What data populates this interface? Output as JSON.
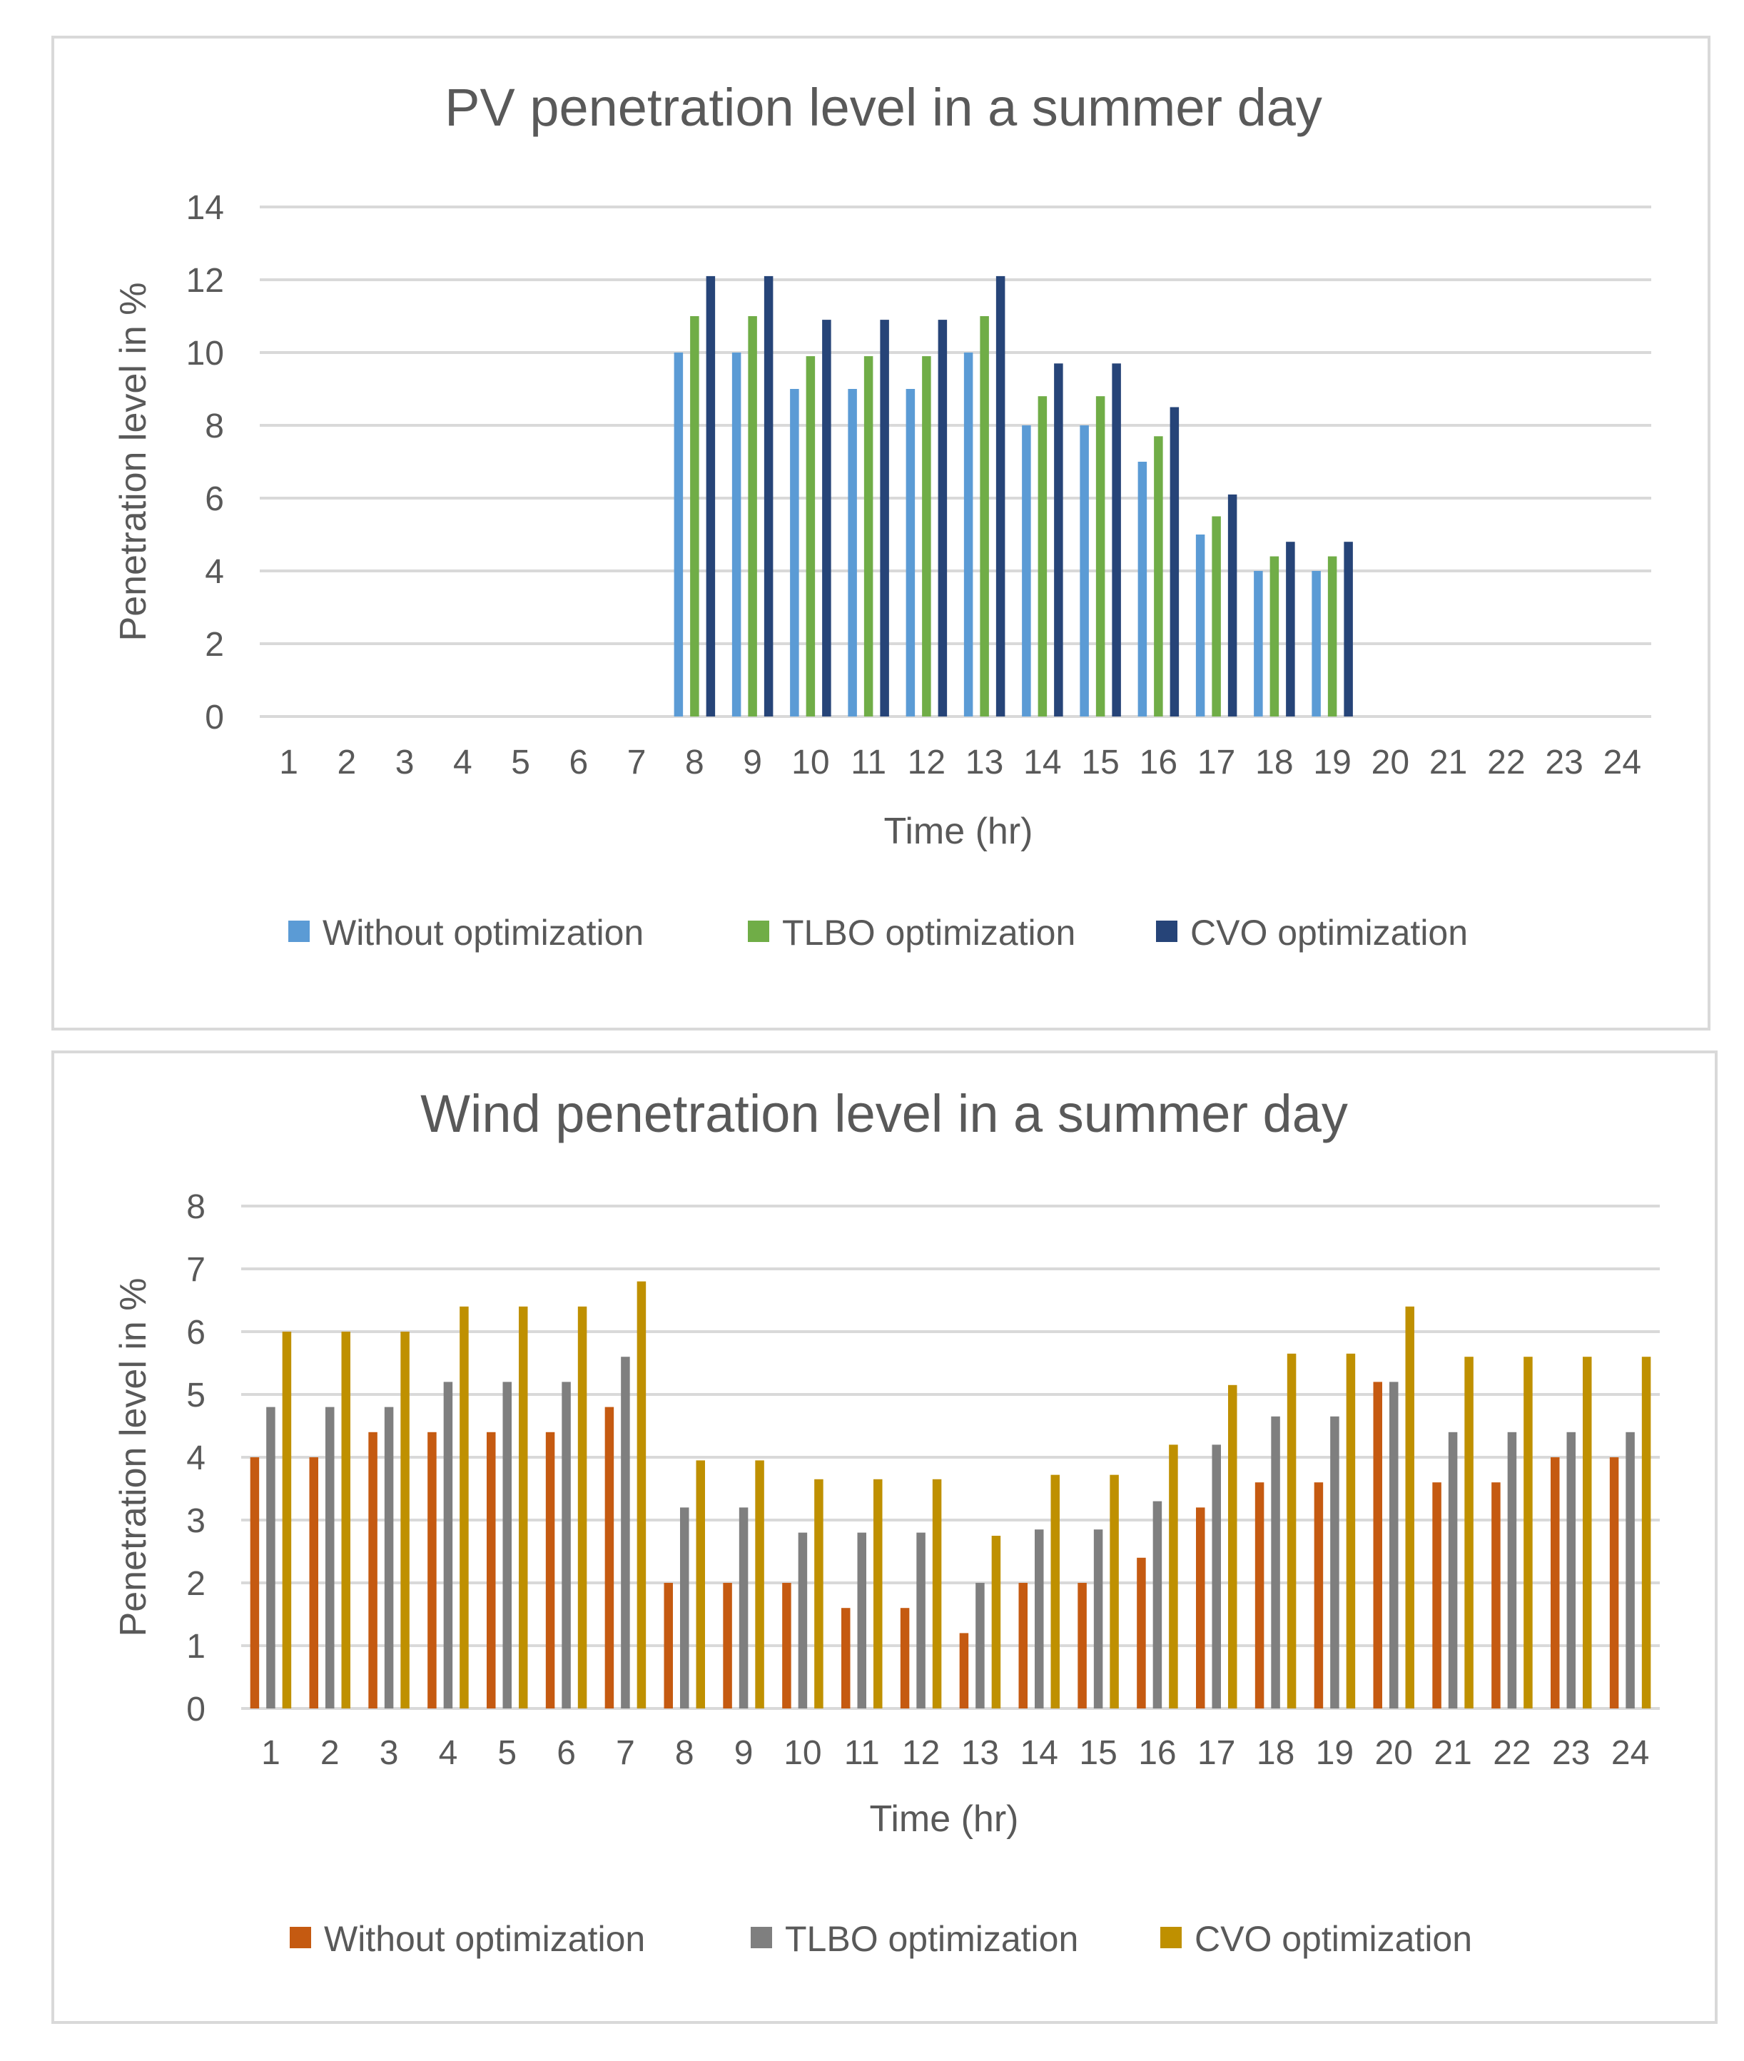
{
  "chart_data": [
    {
      "id": "pv",
      "type": "bar",
      "title": "PV penetration level in a summer day",
      "xlabel": "Time (hr)",
      "ylabel": "Penetration level in %",
      "ylim": [
        0,
        14
      ],
      "yticks": [
        "0",
        "2",
        "4",
        "6",
        "8",
        "10",
        "12",
        "14"
      ],
      "grid": true,
      "legend_position": "bottom",
      "categories": [
        "1",
        "2",
        "3",
        "4",
        "5",
        "6",
        "7",
        "8",
        "9",
        "10",
        "11",
        "12",
        "13",
        "14",
        "15",
        "16",
        "17",
        "18",
        "19",
        "20",
        "21",
        "22",
        "23",
        "24"
      ],
      "series": [
        {
          "name": "Without optimization",
          "color": "#5b9bd5",
          "values": [
            0,
            0,
            0,
            0,
            0,
            0,
            0,
            10,
            10,
            9,
            9,
            9,
            10,
            8,
            8,
            7,
            5,
            4,
            4,
            0,
            0,
            0,
            0,
            0
          ]
        },
        {
          "name": "TLBO optimization",
          "color": "#70ad47",
          "values": [
            0,
            0,
            0,
            0,
            0,
            0,
            0,
            11,
            11,
            9.9,
            9.9,
            9.9,
            11,
            8.8,
            8.8,
            7.7,
            5.5,
            4.4,
            4.4,
            0,
            0,
            0,
            0,
            0
          ]
        },
        {
          "name": "CVO optimization",
          "color": "#264478",
          "values": [
            0,
            0,
            0,
            0,
            0,
            0,
            0,
            12.1,
            12.1,
            10.9,
            10.9,
            10.9,
            12.1,
            9.7,
            9.7,
            8.5,
            6.1,
            4.8,
            4.8,
            0,
            0,
            0,
            0,
            0
          ]
        }
      ]
    },
    {
      "id": "wind",
      "type": "bar",
      "title": "Wind penetration level in a summer day",
      "xlabel": "Time (hr)",
      "ylabel": "Penetration level in %",
      "ylim": [
        0,
        8
      ],
      "yticks": [
        "0",
        "1",
        "2",
        "3",
        "4",
        "5",
        "6",
        "7",
        "8"
      ],
      "grid": true,
      "legend_position": "bottom",
      "categories": [
        "1",
        "2",
        "3",
        "4",
        "5",
        "6",
        "7",
        "8",
        "9",
        "10",
        "11",
        "12",
        "13",
        "14",
        "15",
        "16",
        "17",
        "18",
        "19",
        "20",
        "21",
        "22",
        "23",
        "24"
      ],
      "series": [
        {
          "name": "Without optimization",
          "color": "#c55a11",
          "values": [
            4,
            4,
            4.4,
            4.4,
            4.4,
            4.4,
            4.8,
            2,
            2,
            2,
            1.6,
            1.6,
            1.2,
            2,
            2,
            2.4,
            3.2,
            3.6,
            3.6,
            5.2,
            3.6,
            3.6,
            4,
            4
          ]
        },
        {
          "name": "TLBO optimization",
          "color": "#7f7f7f",
          "values": [
            4.8,
            4.8,
            4.8,
            5.2,
            5.2,
            5.2,
            5.6,
            3.2,
            3.2,
            2.8,
            2.8,
            2.8,
            2,
            2.85,
            2.85,
            3.3,
            4.2,
            4.65,
            4.65,
            5.2,
            4.4,
            4.4,
            4.4,
            4.4
          ]
        },
        {
          "name": "CVO optimization",
          "color": "#bf9000",
          "values": [
            6,
            6,
            6,
            6.4,
            6.4,
            6.4,
            6.8,
            3.95,
            3.95,
            3.65,
            3.65,
            3.65,
            2.75,
            3.72,
            3.72,
            4.2,
            5.15,
            5.65,
            5.65,
            6.4,
            5.6,
            5.6,
            5.6,
            5.6
          ]
        }
      ]
    }
  ]
}
